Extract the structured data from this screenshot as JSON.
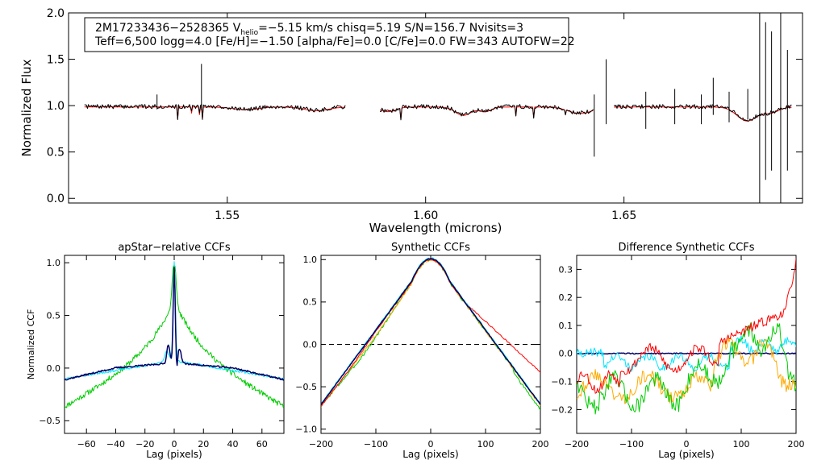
{
  "top_panel": {
    "info_line1_pre": "2M17233436−2528365  V",
    "info_line1_sub": "helio",
    "info_line1_post": "=−5.15 km/s  chisq=5.19  S/N=156.7  Nvisits=3",
    "info_line2": "Teff=6,500 logg=4.0 [Fe/H]=−1.50 [alpha/Fe]=0.0 [C/Fe]=0.0 FW=343 AUTOFW=22"
  },
  "chart_data": [
    {
      "id": "spectrum",
      "type": "line",
      "title": "",
      "xlabel": "Wavelength (microns)",
      "ylabel": "Normalized Flux",
      "xlim": [
        1.51,
        1.695
      ],
      "ylim": [
        -0.05,
        2.0
      ],
      "x_ticks": [
        1.55,
        1.6,
        1.65
      ],
      "x_tick_labels": [
        "1.55",
        "1.60",
        "1.65"
      ],
      "y_ticks": [
        0.0,
        0.5,
        1.0,
        1.5,
        2.0
      ],
      "y_tick_labels": [
        "0.0",
        "0.5",
        "1.0",
        "1.5",
        "2.0"
      ],
      "chips": [
        [
          1.514,
          1.58
        ],
        [
          1.5885,
          1.6425
        ],
        [
          1.6475,
          1.6925
        ]
      ],
      "series": [
        {
          "name": "observed",
          "color": "#000000"
        },
        {
          "name": "model",
          "color": "#ff0000"
        }
      ],
      "spikes": [
        {
          "x": 1.5435,
          "min": 0.95,
          "max": 1.45
        },
        {
          "x": 1.5323,
          "min": 0.96,
          "max": 1.12
        },
        {
          "x": 1.6425,
          "min": 0.45,
          "max": 1.12
        },
        {
          "x": 1.6455,
          "min": 0.8,
          "max": 1.5
        },
        {
          "x": 1.6555,
          "min": 0.75,
          "max": 1.15
        },
        {
          "x": 1.6628,
          "min": 0.8,
          "max": 1.18
        },
        {
          "x": 1.6695,
          "min": 0.8,
          "max": 1.12
        },
        {
          "x": 1.6725,
          "min": 0.9,
          "max": 1.3
        },
        {
          "x": 1.6765,
          "min": 0.82,
          "max": 1.15
        },
        {
          "x": 1.6812,
          "min": 0.85,
          "max": 1.18
        },
        {
          "x": 1.6842,
          "min": -0.05,
          "max": 2.0
        },
        {
          "x": 1.6857,
          "min": 0.2,
          "max": 1.9
        },
        {
          "x": 1.6872,
          "min": 0.3,
          "max": 1.8
        },
        {
          "x": 1.6895,
          "min": -0.05,
          "max": 2.0
        },
        {
          "x": 1.6912,
          "min": 0.3,
          "max": 1.6
        }
      ]
    },
    {
      "id": "apstar_ccf",
      "type": "line",
      "title": "apStar−relative CCFs",
      "xlabel": "Lag (pixels)",
      "ylabel": "Normalized CCF",
      "xlim": [
        -75,
        75
      ],
      "ylim": [
        -0.62,
        1.07
      ],
      "x_ticks": [
        -60,
        -40,
        -20,
        0,
        20,
        40,
        60
      ],
      "x_tick_labels": [
        "−60",
        "−40",
        "−20",
        "0",
        "20",
        "40",
        "60"
      ],
      "y_ticks": [
        -0.5,
        0.0,
        0.5,
        1.0
      ],
      "y_tick_labels": [
        "−0.5",
        "0.0",
        "0.5",
        "1.0"
      ],
      "series": [
        {
          "name": "broad",
          "color": "#00cc00"
        },
        {
          "name": "cyan",
          "color": "#00e5ff"
        },
        {
          "name": "dark",
          "color": "#000066"
        }
      ]
    },
    {
      "id": "synthetic_ccf",
      "type": "line",
      "title": "Synthetic CCFs",
      "xlabel": "Lag (pixels)",
      "ylabel": "",
      "xlim": [
        -200,
        200
      ],
      "ylim": [
        -1.05,
        1.05
      ],
      "x_ticks": [
        -200,
        -100,
        0,
        100,
        200
      ],
      "x_tick_labels": [
        "−200",
        "−100",
        "0",
        "100",
        "200"
      ],
      "y_ticks": [
        -1.0,
        -0.5,
        0.0,
        0.5,
        1.0
      ],
      "y_tick_labels": [
        "−1.0",
        "−0.5",
        "0.0",
        "0.5",
        "1.0"
      ],
      "zero_line": true,
      "series": [
        {
          "name": "red",
          "color": "#ff0000"
        },
        {
          "name": "green",
          "color": "#00cc00"
        },
        {
          "name": "orange",
          "color": "#ffaa00"
        },
        {
          "name": "cyan",
          "color": "#00e5ff"
        },
        {
          "name": "dark",
          "color": "#000066"
        }
      ]
    },
    {
      "id": "diff_ccf",
      "type": "line",
      "title": "Difference Synthetic CCFs",
      "xlabel": "Lag (pixels)",
      "ylabel": "",
      "xlim": [
        -200,
        200
      ],
      "ylim": [
        -0.285,
        0.35
      ],
      "x_ticks": [
        -200,
        -100,
        0,
        100,
        200
      ],
      "x_tick_labels": [
        "−200",
        "−100",
        "0",
        "100",
        "200"
      ],
      "y_ticks": [
        -0.2,
        -0.1,
        0.0,
        0.1,
        0.2,
        0.3
      ],
      "y_tick_labels": [
        "−0.2",
        "−0.1",
        "0.0",
        "0.1",
        "0.2",
        "0.3"
      ],
      "series": [
        {
          "name": "red",
          "color": "#ff0000"
        },
        {
          "name": "green",
          "color": "#00cc00"
        },
        {
          "name": "orange",
          "color": "#ffaa00"
        },
        {
          "name": "cyan",
          "color": "#00e5ff"
        },
        {
          "name": "dark",
          "color": "#000066"
        }
      ]
    }
  ]
}
